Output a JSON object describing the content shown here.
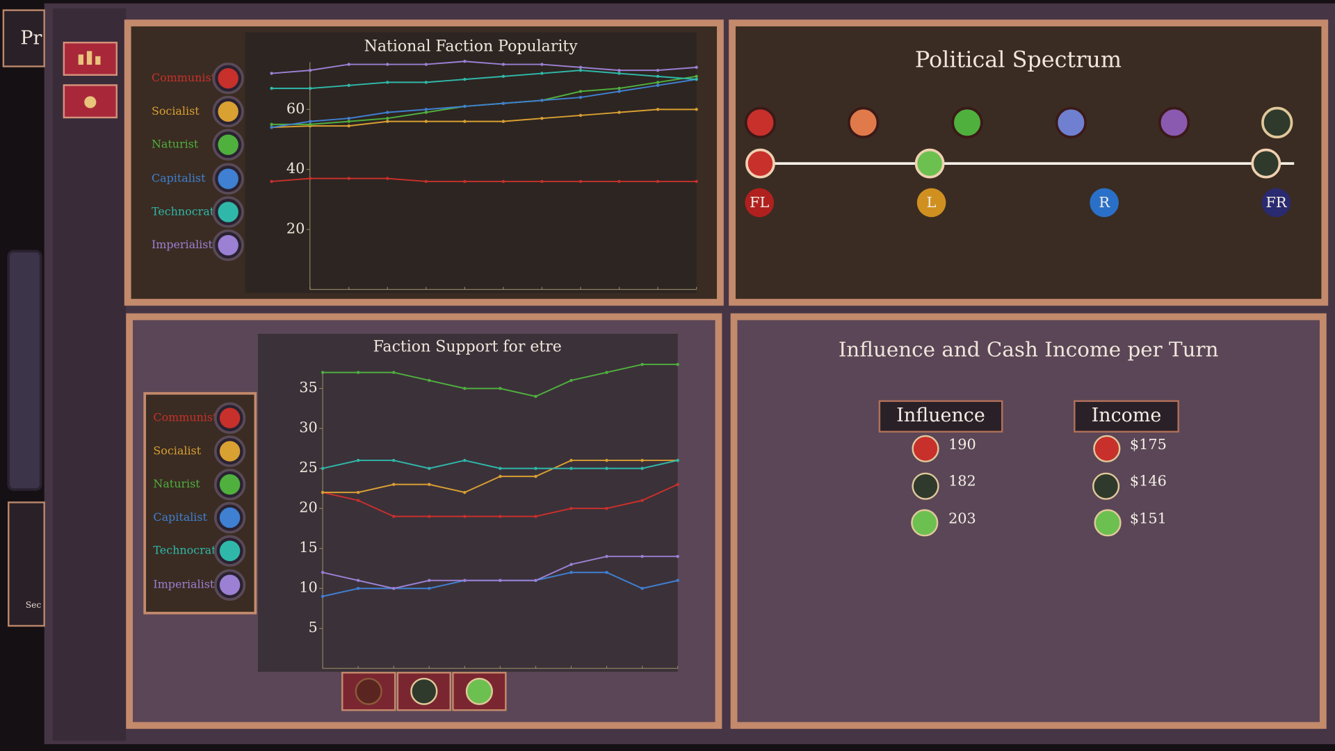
{
  "sidebar": {
    "title": "Pr",
    "label": "Sec"
  },
  "chart_data": [
    {
      "type": "line",
      "title": "National Faction Popularity",
      "categories": [
        null,
        null,
        null,
        null,
        null,
        null,
        null,
        null,
        null,
        null,
        null,
        null
      ],
      "ylim": [
        0,
        78
      ],
      "yticks": [
        20,
        40,
        60
      ],
      "series": [
        {
          "name": "Communist",
          "color": "#c8302c",
          "values": [
            36,
            37,
            37,
            37,
            36,
            36,
            36,
            36,
            36,
            36,
            36,
            36
          ]
        },
        {
          "name": "Socialist",
          "color": "#d9a032",
          "values": [
            54,
            54.5,
            54.5,
            56,
            56,
            56,
            56,
            57,
            58,
            59,
            60,
            60
          ]
        },
        {
          "name": "Naturist",
          "color": "#4fb03e",
          "values": [
            55,
            55,
            56,
            57,
            59,
            61,
            62,
            63,
            66,
            67,
            69,
            71
          ]
        },
        {
          "name": "Capitalist",
          "color": "#3f80d2",
          "values": [
            54,
            56,
            57,
            59,
            60,
            61,
            62,
            63,
            64,
            66,
            68,
            70
          ]
        },
        {
          "name": "Technocrat",
          "color": "#2fb8aa",
          "values": [
            67,
            67,
            68,
            69,
            69,
            70,
            71,
            72,
            73,
            72,
            71,
            70
          ]
        },
        {
          "name": "Imperialist",
          "color": "#9b80d4",
          "values": [
            72,
            73,
            75,
            75,
            75,
            76,
            75,
            75,
            74,
            73,
            73,
            74
          ]
        }
      ]
    },
    {
      "type": "line",
      "title": "Faction Support for etre",
      "categories": [
        null,
        null,
        null,
        null,
        null,
        null,
        null,
        null,
        null,
        null,
        null
      ],
      "ylim": [
        0,
        38
      ],
      "yticks": [
        5,
        10,
        15,
        20,
        25,
        30,
        35
      ],
      "series": [
        {
          "name": "Communist",
          "color": "#c8302c",
          "values": [
            22,
            21,
            19,
            19,
            19,
            19,
            19,
            20,
            20,
            21,
            23
          ]
        },
        {
          "name": "Socialist",
          "color": "#d9a032",
          "values": [
            22,
            22,
            23,
            23,
            22,
            24,
            24,
            26,
            26,
            26,
            26
          ]
        },
        {
          "name": "Naturist",
          "color": "#4fb03e",
          "values": [
            37,
            37,
            37,
            36,
            35,
            35,
            34,
            36,
            37,
            38,
            38
          ]
        },
        {
          "name": "Capitalist",
          "color": "#3f80d2",
          "values": [
            9,
            10,
            10,
            10,
            11,
            11,
            11,
            12,
            12,
            10,
            11
          ]
        },
        {
          "name": "Technocrat",
          "color": "#2fb8aa",
          "values": [
            25,
            26,
            26,
            25,
            26,
            25,
            25,
            25,
            25,
            25,
            26
          ]
        },
        {
          "name": "Imperialist",
          "color": "#9b80d4",
          "values": [
            12,
            11,
            10,
            11,
            11,
            11,
            11,
            13,
            14,
            14,
            14
          ]
        }
      ]
    }
  ],
  "spectrum": {
    "title": "Political Spectrum",
    "positions": [
      "FL",
      "L",
      "R",
      "FR"
    ]
  },
  "income": {
    "title": "Influence and Cash Income per Turn",
    "influence": {
      "header": "Influence",
      "values": [
        "190",
        "182",
        "203"
      ]
    },
    "cash": {
      "header": "Income",
      "values": [
        "$175",
        "$146",
        "$151"
      ]
    }
  }
}
